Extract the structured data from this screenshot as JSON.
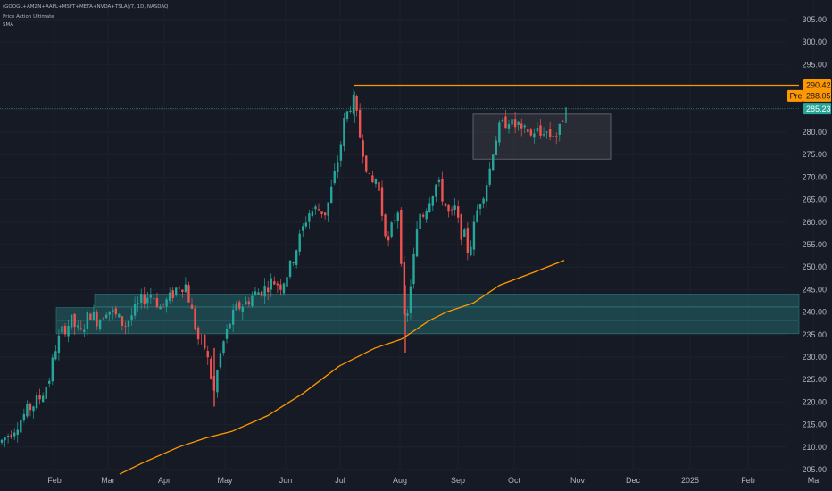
{
  "legend": {
    "symbol": "(GOOGL+AMZN+AAPL+MSFT+META+NVDA+TSLA)/7, 1D, NASDAQ",
    "indicator1": "Price Action Ultimate",
    "indicator2": "SMA"
  },
  "colors": {
    "background": "#161a25",
    "up": "#26a69a",
    "down": "#ef5350",
    "sma": "#ff9800",
    "resistance": "#ff9800",
    "zone": "#1f4f55",
    "range_box": "#3a3c44"
  },
  "chart_data": {
    "type": "candlestick",
    "title": "(GOOGL+AMZN+AAPL+MSFT+META+NVDA+TSLA)/7, 1D, NASDAQ",
    "yticks": [
      205,
      210,
      215,
      220,
      225,
      230,
      235,
      240,
      245,
      250,
      255,
      260,
      265,
      270,
      275,
      280,
      285,
      290,
      295,
      300,
      305
    ],
    "ylim": [
      204,
      308
    ],
    "xticks": [
      "Feb",
      "Mar",
      "Apr",
      "May",
      "Jun",
      "Jul",
      "Aug",
      "Sep",
      "Oct",
      "Nov",
      "Dec",
      "2025",
      "Feb",
      "Ma"
    ],
    "price_path": [
      [
        0,
        211
      ],
      [
        15,
        214
      ],
      [
        30,
        218
      ],
      [
        45,
        221
      ],
      [
        55,
        225
      ],
      [
        62,
        232
      ],
      [
        70,
        236
      ],
      [
        80,
        238
      ],
      [
        90,
        235
      ],
      [
        100,
        240
      ],
      [
        110,
        238
      ],
      [
        120,
        241
      ],
      [
        130,
        239
      ],
      [
        140,
        237
      ],
      [
        150,
        240
      ],
      [
        160,
        243
      ],
      [
        170,
        244
      ],
      [
        180,
        241
      ],
      [
        190,
        243
      ],
      [
        200,
        246
      ],
      [
        208,
        246
      ],
      [
        215,
        240
      ],
      [
        222,
        234
      ],
      [
        230,
        232
      ],
      [
        240,
        222
      ],
      [
        245,
        229
      ],
      [
        250,
        233
      ],
      [
        258,
        238
      ],
      [
        266,
        241
      ],
      [
        275,
        242
      ],
      [
        285,
        244
      ],
      [
        295,
        245
      ],
      [
        305,
        247
      ],
      [
        315,
        246
      ],
      [
        325,
        250
      ],
      [
        335,
        256
      ],
      [
        345,
        262
      ],
      [
        355,
        263
      ],
      [
        365,
        262
      ],
      [
        372,
        268
      ],
      [
        380,
        275
      ],
      [
        385,
        282
      ],
      [
        392,
        286
      ],
      [
        397,
        287
      ],
      [
        402,
        280
      ],
      [
        408,
        275
      ],
      [
        415,
        268
      ],
      [
        422,
        270
      ],
      [
        428,
        262
      ],
      [
        435,
        255
      ],
      [
        440,
        260
      ],
      [
        446,
        263
      ],
      [
        450,
        250
      ],
      [
        454,
        233
      ],
      [
        458,
        243
      ],
      [
        462,
        250
      ],
      [
        466,
        256
      ],
      [
        470,
        262
      ],
      [
        475,
        262
      ],
      [
        480,
        265
      ],
      [
        485,
        267
      ],
      [
        490,
        269
      ],
      [
        495,
        266
      ],
      [
        500,
        263
      ],
      [
        505,
        261
      ],
      [
        510,
        263
      ],
      [
        515,
        258
      ],
      [
        520,
        257
      ],
      [
        525,
        253
      ],
      [
        528,
        256
      ],
      [
        532,
        260
      ],
      [
        536,
        264
      ],
      [
        540,
        266
      ],
      [
        544,
        268
      ],
      [
        548,
        271
      ],
      [
        552,
        276
      ],
      [
        556,
        279
      ],
      [
        560,
        281
      ],
      [
        565,
        282
      ],
      [
        570,
        283
      ],
      [
        575,
        281
      ],
      [
        580,
        282
      ],
      [
        585,
        279
      ],
      [
        590,
        281
      ],
      [
        595,
        279
      ],
      [
        600,
        281
      ],
      [
        605,
        279
      ],
      [
        610,
        281
      ],
      [
        615,
        279
      ],
      [
        620,
        280
      ],
      [
        625,
        279
      ],
      [
        630,
        283
      ],
      [
        634,
        286
      ]
    ],
    "sma": {
      "name": "SMA",
      "points": [
        [
          134,
          204
        ],
        [
          160,
          206.5
        ],
        [
          200,
          210
        ],
        [
          230,
          212
        ],
        [
          260,
          213.5
        ],
        [
          300,
          217
        ],
        [
          340,
          222
        ],
        [
          380,
          228
        ],
        [
          420,
          232
        ],
        [
          450,
          234
        ],
        [
          480,
          238
        ],
        [
          500,
          240
        ],
        [
          530,
          242
        ],
        [
          560,
          246
        ],
        [
          600,
          249
        ],
        [
          632,
          251.5
        ]
      ]
    },
    "annotations": {
      "resistance_level": 290.42,
      "pre_market": 288.05,
      "last_price": 285.23,
      "support_zones": [
        [
          241,
          244
        ],
        [
          238,
          241
        ],
        [
          235,
          238
        ]
      ],
      "range_box": {
        "from_x": 530,
        "to_x": 684,
        "low": 274,
        "high": 284
      }
    }
  },
  "price_tags": {
    "resistance": "290.42",
    "pre_label": "Pre",
    "pre_value": "288.05",
    "last": "285.23"
  }
}
